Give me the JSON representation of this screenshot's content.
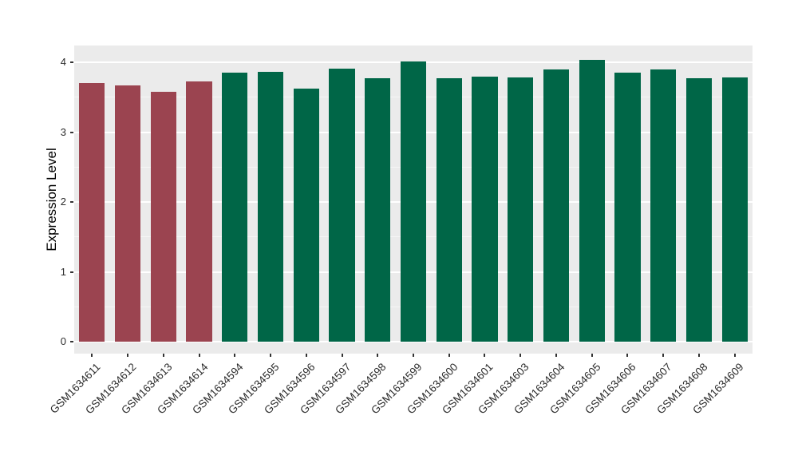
{
  "chart_data": {
    "type": "bar",
    "title": "",
    "xlabel": "",
    "ylabel": "Expression Level",
    "categories": [
      "GSM1634611",
      "GSM1634612",
      "GSM1634613",
      "GSM1634614",
      "GSM1634594",
      "GSM1634595",
      "GSM1634596",
      "GSM1634597",
      "GSM1634598",
      "GSM1634599",
      "GSM1634600",
      "GSM1634601",
      "GSM1634603",
      "GSM1634604",
      "GSM1634605",
      "GSM1634606",
      "GSM1634607",
      "GSM1634608",
      "GSM1634609"
    ],
    "values": [
      3.7,
      3.67,
      3.58,
      3.73,
      3.85,
      3.86,
      3.62,
      3.91,
      3.77,
      4.01,
      3.77,
      3.79,
      3.78,
      3.9,
      4.04,
      3.85,
      3.9,
      3.77,
      3.78
    ],
    "bar_groups": [
      0,
      0,
      0,
      0,
      1,
      1,
      1,
      1,
      1,
      1,
      1,
      1,
      1,
      1,
      1,
      1,
      1,
      1,
      1
    ],
    "group_colors": [
      "#9B4450",
      "#006647"
    ],
    "yticks": [
      0,
      1,
      2,
      3,
      4
    ],
    "ytick_labels": [
      "0",
      "1",
      "2",
      "3",
      "4"
    ],
    "minor_yticks": [
      0.5,
      1.5,
      2.5,
      3.5
    ],
    "ylim": [
      -0.17,
      4.24
    ],
    "grid": "major-white-minor-faint",
    "legend_position": "none",
    "panel_background": "#EBEBEB",
    "tick_color": "#333333",
    "bar_width_ratio": 0.72,
    "x_label_angle_deg": 45
  }
}
